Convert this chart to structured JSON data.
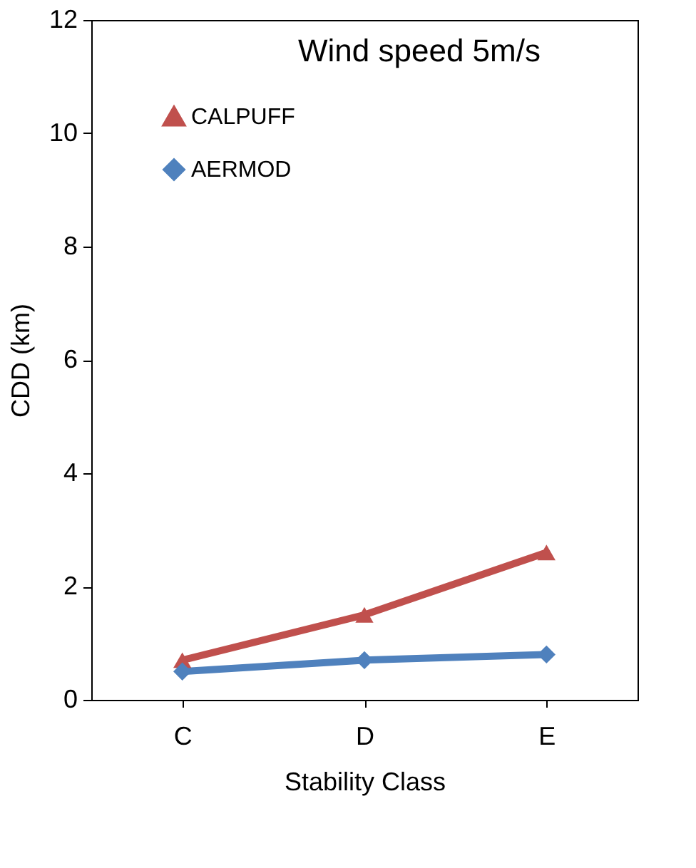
{
  "chart_data": {
    "type": "line",
    "title": "Wind speed 5m/s",
    "xlabel": "Stability Class",
    "ylabel": "CDD (km)",
    "categories": [
      "C",
      "D",
      "E"
    ],
    "series": [
      {
        "name": "CALPUFF",
        "color": "#c0504d",
        "marker": "triangle",
        "values": [
          0.7,
          1.5,
          2.6
        ]
      },
      {
        "name": "AERMOD",
        "color": "#4f81bd",
        "marker": "diamond",
        "values": [
          0.5,
          0.7,
          0.8
        ]
      }
    ],
    "ylim": [
      0,
      12
    ],
    "yticks": [
      0,
      2,
      4,
      6,
      8,
      10,
      12
    ],
    "grid": false,
    "legend": "top left"
  }
}
